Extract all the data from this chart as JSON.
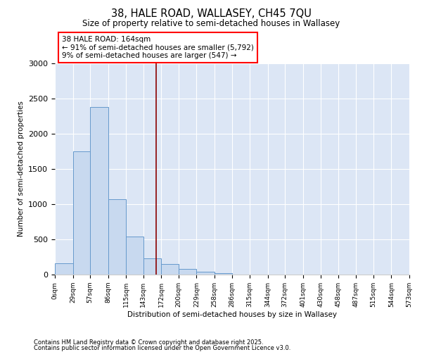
{
  "title1": "38, HALE ROAD, WALLASEY, CH45 7QU",
  "title2": "Size of property relative to semi-detached houses in Wallasey",
  "xlabel": "Distribution of semi-detached houses by size in Wallasey",
  "ylabel": "Number of semi-detached properties",
  "bar_color": "#c8d9ef",
  "bar_edge_color": "#6699cc",
  "bg_color": "#dce6f5",
  "grid_color": "white",
  "annotation_text": "38 HALE ROAD: 164sqm\n← 91% of semi-detached houses are smaller (5,792)\n9% of semi-detached houses are larger (547) →",
  "vline_x": 164,
  "vline_color": "#8b0000",
  "bin_edges": [
    0,
    29,
    57,
    86,
    115,
    143,
    172,
    200,
    229,
    258,
    286,
    315,
    344,
    372,
    401,
    430,
    458,
    487,
    515,
    544,
    573
  ],
  "bin_values": [
    160,
    1750,
    2380,
    1070,
    540,
    230,
    150,
    80,
    40,
    25,
    0,
    0,
    0,
    0,
    0,
    0,
    0,
    0,
    0,
    0
  ],
  "ylim": [
    0,
    3000
  ],
  "yticks": [
    0,
    500,
    1000,
    1500,
    2000,
    2500,
    3000
  ],
  "footer1": "Contains HM Land Registry data © Crown copyright and database right 2025.",
  "footer2": "Contains public sector information licensed under the Open Government Licence v3.0.",
  "annotation_box_color": "red",
  "annotation_bg": "white"
}
